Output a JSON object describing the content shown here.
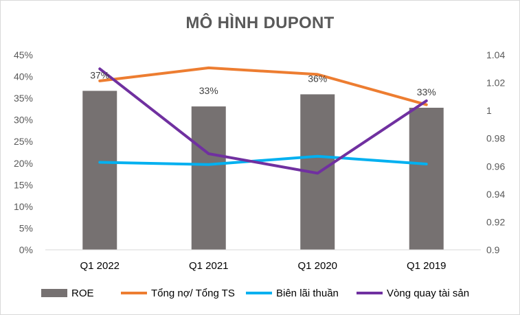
{
  "chart_data": {
    "type": "bar+line",
    "title": "MÔ HÌNH DUPONT",
    "categories": [
      "Q1 2022",
      "Q1 2021",
      "Q1 2020",
      "Q1 2019"
    ],
    "left_axis": {
      "range": [
        0,
        0.45
      ],
      "ticks": [
        0,
        0.05,
        0.1,
        0.15,
        0.2,
        0.25,
        0.3,
        0.35,
        0.4,
        0.45
      ],
      "tick_labels": [
        "0%",
        "5%",
        "10%",
        "15%",
        "20%",
        "25%",
        "30%",
        "35%",
        "40%",
        "45%"
      ]
    },
    "right_axis": {
      "range": [
        0.9,
        1.04
      ],
      "ticks": [
        0.9,
        0.92,
        0.94,
        0.96,
        0.98,
        1.0,
        1.02,
        1.04
      ],
      "tick_labels": [
        "0.9",
        "0.92",
        "0.94",
        "0.96",
        "0.98",
        "1",
        "1.02",
        "1.04"
      ]
    },
    "bar_series": {
      "name": "ROE",
      "color": "#767171",
      "axis": "left",
      "values": [
        0.367,
        0.331,
        0.359,
        0.328
      ],
      "data_labels": [
        "37%",
        "33%",
        "36%",
        "33%"
      ]
    },
    "line_series": [
      {
        "name": "Tổng nợ/ Tổng TS",
        "color": "#ED7D31",
        "axis": "left",
        "values": [
          0.39,
          0.42,
          0.405,
          0.335
        ]
      },
      {
        "name": "Biên lãi thuần",
        "color": "#00B0F0",
        "axis": "left",
        "values": [
          0.202,
          0.197,
          0.216,
          0.198
        ]
      },
      {
        "name": "Vòng quay tài sản",
        "color": "#7030A0",
        "axis": "right",
        "values": [
          1.03,
          0.969,
          0.955,
          1.007
        ]
      }
    ],
    "legend": [
      "ROE",
      "Tổng nợ/ Tổng TS",
      "Biên lãi thuần",
      "Vòng quay tài sản"
    ],
    "grid": false
  }
}
